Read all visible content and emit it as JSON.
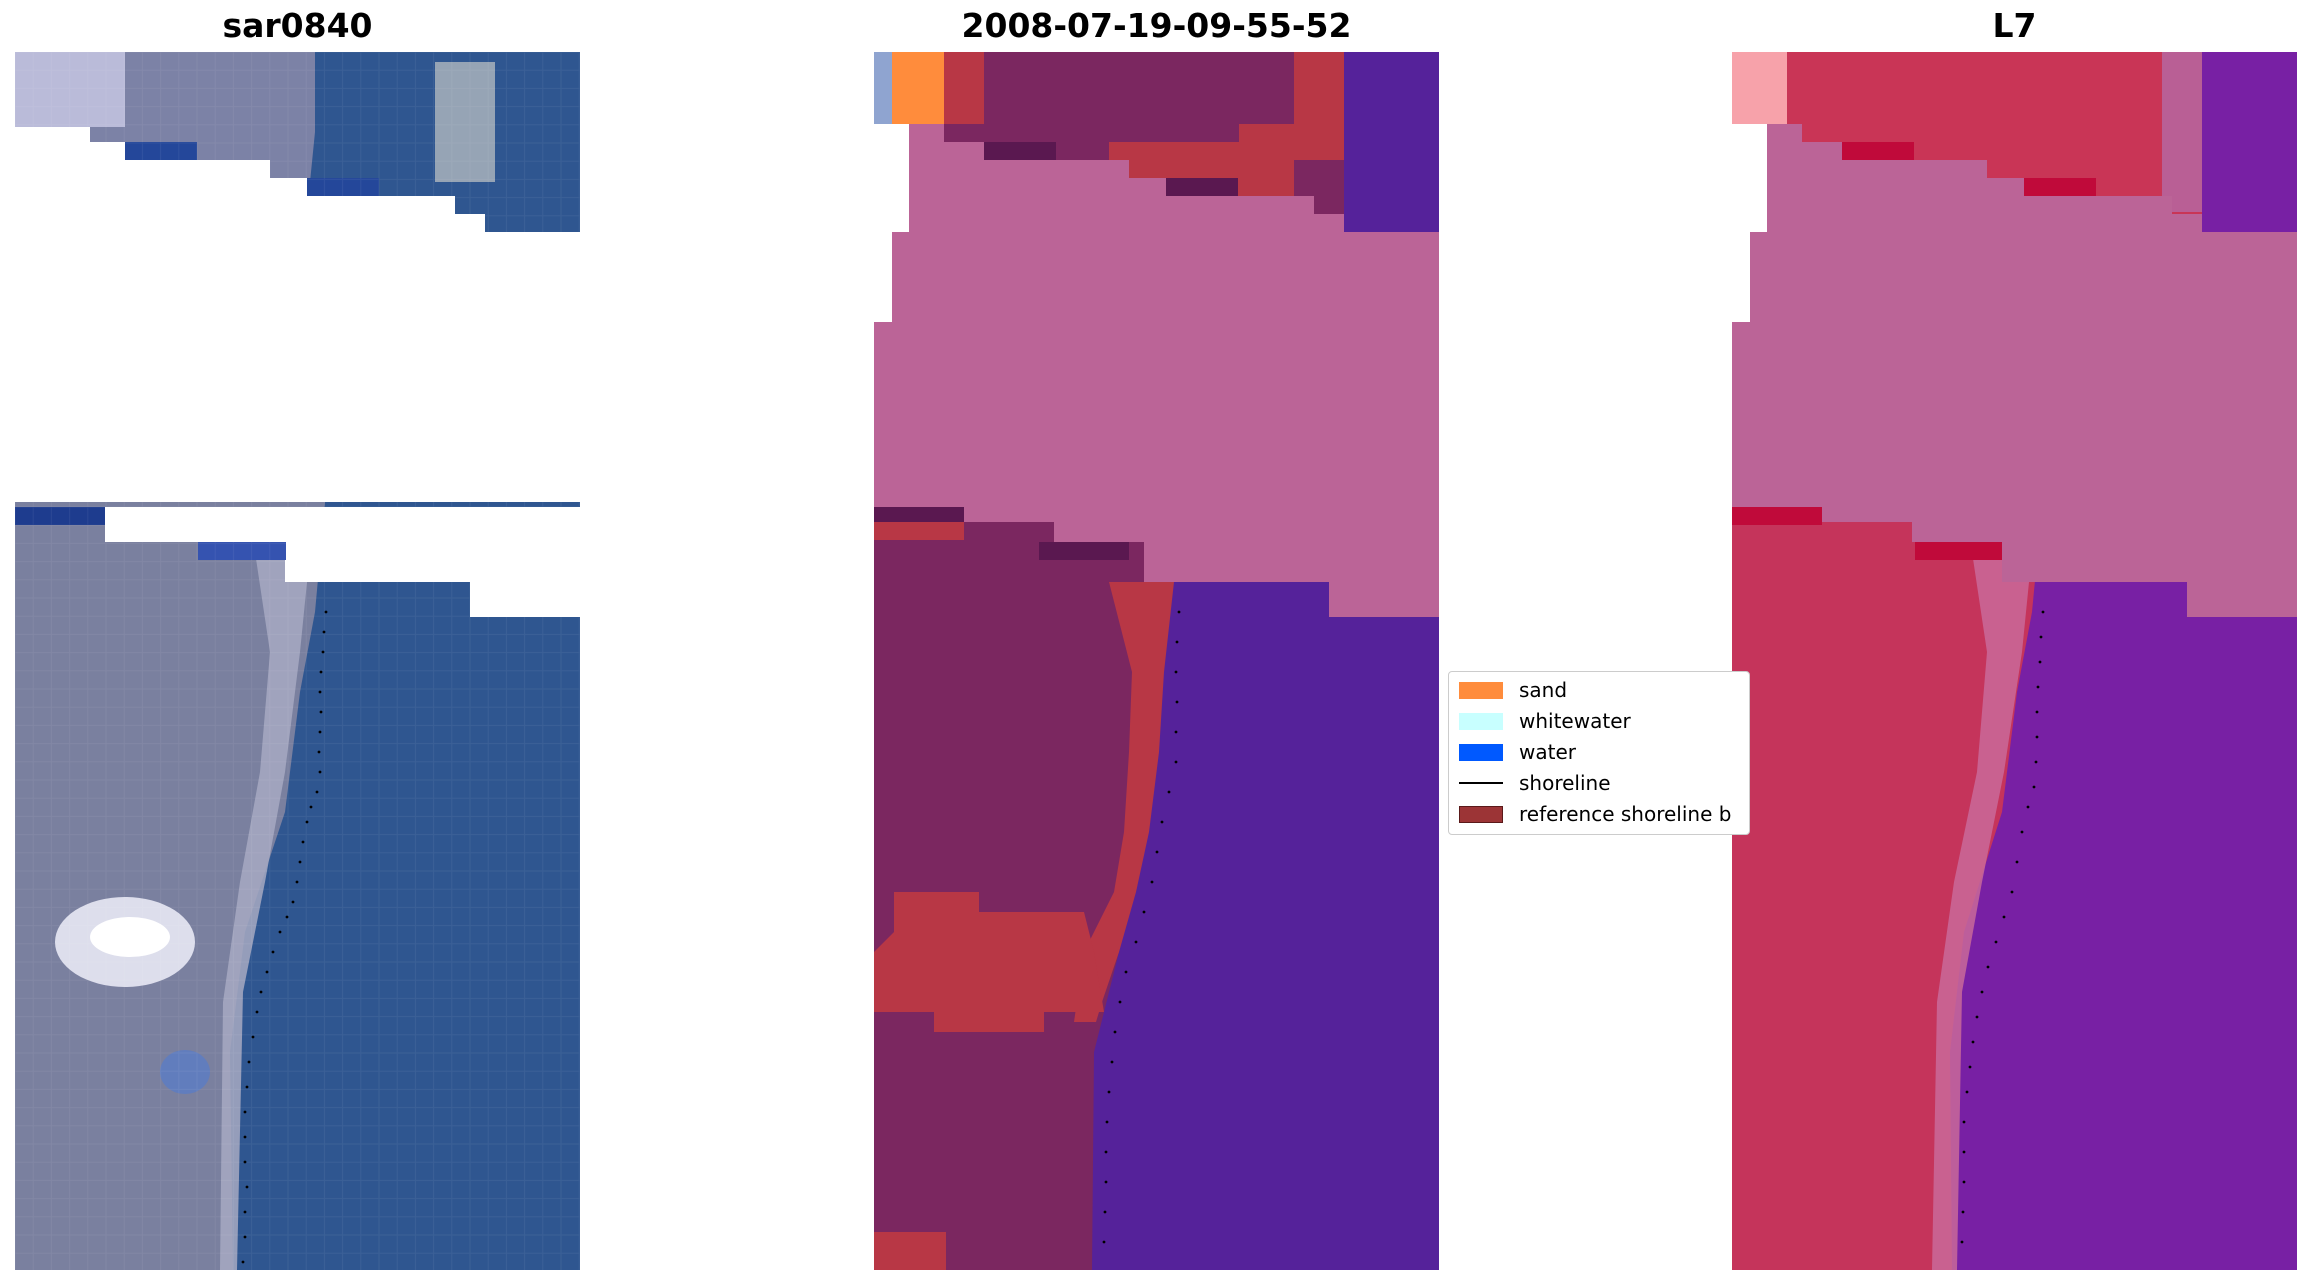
{
  "panels": [
    {
      "title": "sar0840"
    },
    {
      "title": "2008-07-19-09-55-52"
    },
    {
      "title": "L7"
    }
  ],
  "legend": {
    "items": [
      {
        "label": "sand",
        "color": "#ff8c3c",
        "kind": "patch"
      },
      {
        "label": "whitewater",
        "color": "#c8ffff",
        "kind": "patch"
      },
      {
        "label": "water",
        "color": "#0059ff",
        "kind": "patch"
      },
      {
        "label": "shoreline",
        "color": "#000000",
        "kind": "line"
      },
      {
        "label": "reference shoreline b",
        "color": "#9c3436",
        "kind": "patch"
      }
    ]
  },
  "colors": {
    "rgb_water": "#2f5690",
    "rgb_land": "#7f84a8",
    "rgb_dark_water": "#24479a",
    "class_water": "#55229a",
    "class_land": "#7b2760",
    "class_buffer": "#b83745",
    "class_cloud": "#bb6497",
    "class_sand": "#ff8c3c",
    "fc_land": "#c93556",
    "fc_water": "#7820a4",
    "fc_cloud": "#bb6497"
  }
}
